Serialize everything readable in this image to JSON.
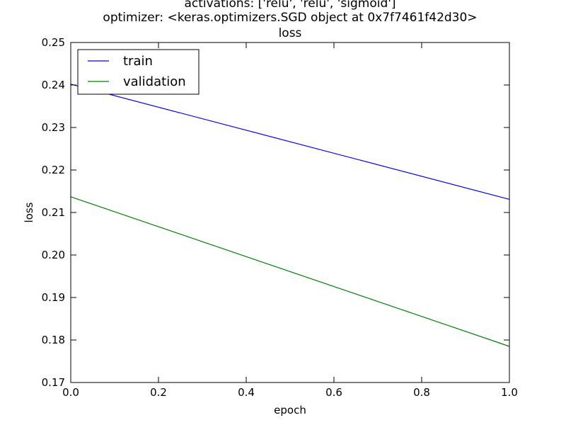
{
  "chart_data": {
    "type": "line",
    "title_lines": [
      "activations: ['relu', 'relu', 'sigmoid']",
      "optimizer: <keras.optimizers.SGD object at 0x7f7461f42d30>",
      "loss"
    ],
    "xlabel": "epoch",
    "ylabel": "loss",
    "xlim": [
      0.0,
      1.0
    ],
    "ylim": [
      0.17,
      0.25
    ],
    "xticks": [
      "0.0",
      "0.2",
      "0.4",
      "0.6",
      "0.8",
      "1.0"
    ],
    "yticks": [
      "0.17",
      "0.18",
      "0.19",
      "0.20",
      "0.21",
      "0.22",
      "0.23",
      "0.24",
      "0.25"
    ],
    "legend_position": "top-left",
    "series": [
      {
        "name": "train",
        "color": "#0000ff",
        "x": [
          0.0,
          1.0
        ],
        "values": [
          0.2402,
          0.2131
        ]
      },
      {
        "name": "validation",
        "color": "#008000",
        "x": [
          0.0,
          1.0
        ],
        "values": [
          0.2137,
          0.1785
        ]
      }
    ]
  }
}
